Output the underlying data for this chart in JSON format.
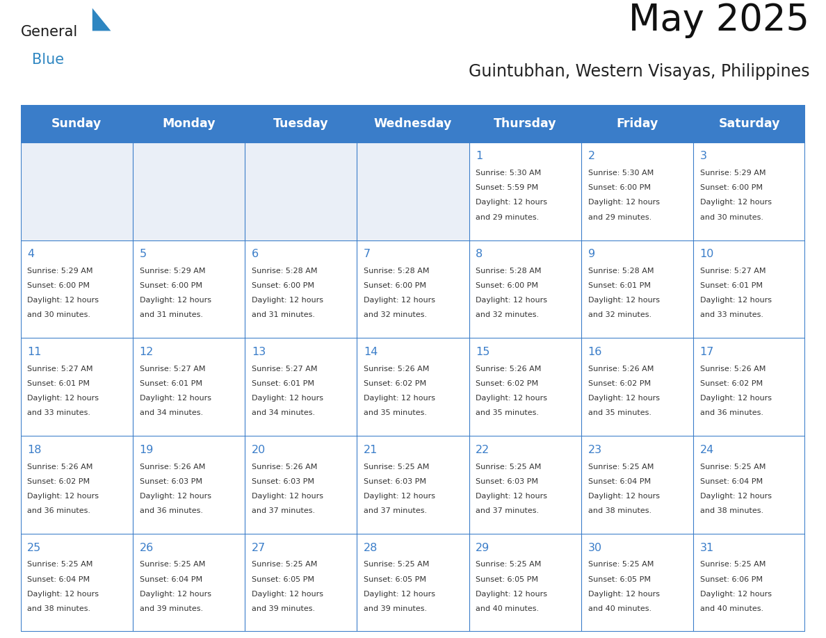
{
  "title": "May 2025",
  "subtitle": "Guintubhan, Western Visayas, Philippines",
  "days_of_week": [
    "Sunday",
    "Monday",
    "Tuesday",
    "Wednesday",
    "Thursday",
    "Friday",
    "Saturday"
  ],
  "header_bg_color": "#3A7DC9",
  "header_text_color": "#FFFFFF",
  "cell_bg_empty": "#EAEFF7",
  "cell_bg_normal": "#FFFFFF",
  "day_number_color": "#3A7DC9",
  "info_text_color": "#333333",
  "border_color": "#3A7DC9",
  "logo_general_color": "#1a1a1a",
  "logo_blue_color": "#2E86C1",
  "logo_triangle_color": "#2E86C1",
  "calendar_data": [
    [
      null,
      null,
      null,
      null,
      {
        "day": 1,
        "sunrise": "5:30 AM",
        "sunset": "5:59 PM",
        "daylight_h": "12 hours",
        "daylight_m": "and 29 minutes."
      },
      {
        "day": 2,
        "sunrise": "5:30 AM",
        "sunset": "6:00 PM",
        "daylight_h": "12 hours",
        "daylight_m": "and 29 minutes."
      },
      {
        "day": 3,
        "sunrise": "5:29 AM",
        "sunset": "6:00 PM",
        "daylight_h": "12 hours",
        "daylight_m": "and 30 minutes."
      }
    ],
    [
      {
        "day": 4,
        "sunrise": "5:29 AM",
        "sunset": "6:00 PM",
        "daylight_h": "12 hours",
        "daylight_m": "and 30 minutes."
      },
      {
        "day": 5,
        "sunrise": "5:29 AM",
        "sunset": "6:00 PM",
        "daylight_h": "12 hours",
        "daylight_m": "and 31 minutes."
      },
      {
        "day": 6,
        "sunrise": "5:28 AM",
        "sunset": "6:00 PM",
        "daylight_h": "12 hours",
        "daylight_m": "and 31 minutes."
      },
      {
        "day": 7,
        "sunrise": "5:28 AM",
        "sunset": "6:00 PM",
        "daylight_h": "12 hours",
        "daylight_m": "and 32 minutes."
      },
      {
        "day": 8,
        "sunrise": "5:28 AM",
        "sunset": "6:00 PM",
        "daylight_h": "12 hours",
        "daylight_m": "and 32 minutes."
      },
      {
        "day": 9,
        "sunrise": "5:28 AM",
        "sunset": "6:01 PM",
        "daylight_h": "12 hours",
        "daylight_m": "and 32 minutes."
      },
      {
        "day": 10,
        "sunrise": "5:27 AM",
        "sunset": "6:01 PM",
        "daylight_h": "12 hours",
        "daylight_m": "and 33 minutes."
      }
    ],
    [
      {
        "day": 11,
        "sunrise": "5:27 AM",
        "sunset": "6:01 PM",
        "daylight_h": "12 hours",
        "daylight_m": "and 33 minutes."
      },
      {
        "day": 12,
        "sunrise": "5:27 AM",
        "sunset": "6:01 PM",
        "daylight_h": "12 hours",
        "daylight_m": "and 34 minutes."
      },
      {
        "day": 13,
        "sunrise": "5:27 AM",
        "sunset": "6:01 PM",
        "daylight_h": "12 hours",
        "daylight_m": "and 34 minutes."
      },
      {
        "day": 14,
        "sunrise": "5:26 AM",
        "sunset": "6:02 PM",
        "daylight_h": "12 hours",
        "daylight_m": "and 35 minutes."
      },
      {
        "day": 15,
        "sunrise": "5:26 AM",
        "sunset": "6:02 PM",
        "daylight_h": "12 hours",
        "daylight_m": "and 35 minutes."
      },
      {
        "day": 16,
        "sunrise": "5:26 AM",
        "sunset": "6:02 PM",
        "daylight_h": "12 hours",
        "daylight_m": "and 35 minutes."
      },
      {
        "day": 17,
        "sunrise": "5:26 AM",
        "sunset": "6:02 PM",
        "daylight_h": "12 hours",
        "daylight_m": "and 36 minutes."
      }
    ],
    [
      {
        "day": 18,
        "sunrise": "5:26 AM",
        "sunset": "6:02 PM",
        "daylight_h": "12 hours",
        "daylight_m": "and 36 minutes."
      },
      {
        "day": 19,
        "sunrise": "5:26 AM",
        "sunset": "6:03 PM",
        "daylight_h": "12 hours",
        "daylight_m": "and 36 minutes."
      },
      {
        "day": 20,
        "sunrise": "5:26 AM",
        "sunset": "6:03 PM",
        "daylight_h": "12 hours",
        "daylight_m": "and 37 minutes."
      },
      {
        "day": 21,
        "sunrise": "5:25 AM",
        "sunset": "6:03 PM",
        "daylight_h": "12 hours",
        "daylight_m": "and 37 minutes."
      },
      {
        "day": 22,
        "sunrise": "5:25 AM",
        "sunset": "6:03 PM",
        "daylight_h": "12 hours",
        "daylight_m": "and 37 minutes."
      },
      {
        "day": 23,
        "sunrise": "5:25 AM",
        "sunset": "6:04 PM",
        "daylight_h": "12 hours",
        "daylight_m": "and 38 minutes."
      },
      {
        "day": 24,
        "sunrise": "5:25 AM",
        "sunset": "6:04 PM",
        "daylight_h": "12 hours",
        "daylight_m": "and 38 minutes."
      }
    ],
    [
      {
        "day": 25,
        "sunrise": "5:25 AM",
        "sunset": "6:04 PM",
        "daylight_h": "12 hours",
        "daylight_m": "and 38 minutes."
      },
      {
        "day": 26,
        "sunrise": "5:25 AM",
        "sunset": "6:04 PM",
        "daylight_h": "12 hours",
        "daylight_m": "and 39 minutes."
      },
      {
        "day": 27,
        "sunrise": "5:25 AM",
        "sunset": "6:05 PM",
        "daylight_h": "12 hours",
        "daylight_m": "and 39 minutes."
      },
      {
        "day": 28,
        "sunrise": "5:25 AM",
        "sunset": "6:05 PM",
        "daylight_h": "12 hours",
        "daylight_m": "and 39 minutes."
      },
      {
        "day": 29,
        "sunrise": "5:25 AM",
        "sunset": "6:05 PM",
        "daylight_h": "12 hours",
        "daylight_m": "and 40 minutes."
      },
      {
        "day": 30,
        "sunrise": "5:25 AM",
        "sunset": "6:05 PM",
        "daylight_h": "12 hours",
        "daylight_m": "and 40 minutes."
      },
      {
        "day": 31,
        "sunrise": "5:25 AM",
        "sunset": "6:06 PM",
        "daylight_h": "12 hours",
        "daylight_m": "and 40 minutes."
      }
    ]
  ]
}
